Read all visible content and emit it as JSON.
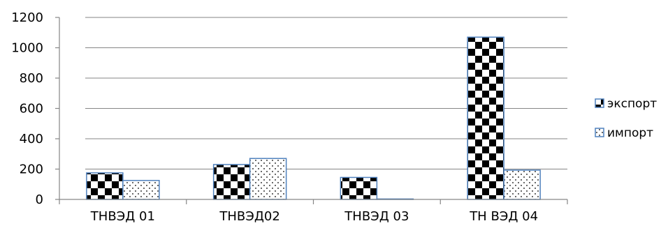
{
  "chart_data": {
    "type": "bar",
    "categories": [
      "ТНВЭД 01",
      "ТНВЭД02",
      "ТНВЭД 03",
      "ТН ВЭД 04"
    ],
    "series": [
      {
        "name": "экспорт",
        "values": [
          175,
          230,
          145,
          1070
        ],
        "pattern": "checker"
      },
      {
        "name": "импорт",
        "values": [
          125,
          270,
          3,
          193
        ],
        "pattern": "dots"
      }
    ],
    "ylim": [
      0,
      1200
    ],
    "yticks": [
      0,
      200,
      400,
      600,
      800,
      1000,
      1200
    ],
    "grid": true,
    "legend_position": "right",
    "colors": {
      "bar_fill": "#000000",
      "bar_border": "#4f81bd",
      "axis": "#868686",
      "grid": "#868686"
    }
  }
}
